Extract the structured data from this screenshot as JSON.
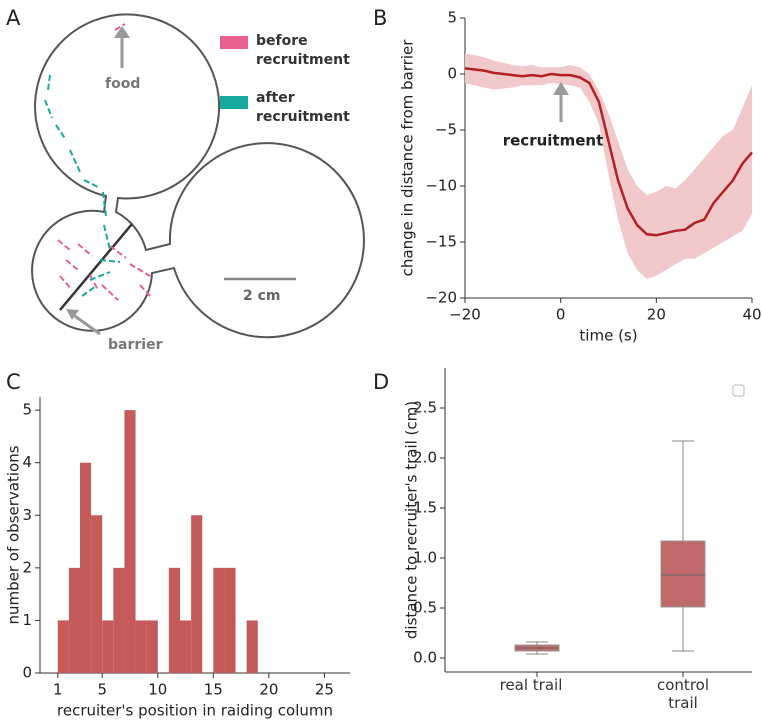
{
  "chart_data": [
    {
      "panel": "A",
      "type": "diagram",
      "series": [
        {
          "name": "before recruitment",
          "color": "#e8608e"
        },
        {
          "name": "after recruitment",
          "color": "#17a89e"
        }
      ],
      "annotations": [
        "food",
        "barrier",
        "2 cm"
      ]
    },
    {
      "panel": "B",
      "type": "line",
      "x": [
        -20,
        -18,
        -16,
        -14,
        -12,
        -10,
        -8,
        -6,
        -4,
        -2,
        0,
        2,
        4,
        6,
        8,
        10,
        12,
        14,
        16,
        18,
        20,
        22,
        24,
        26,
        28,
        30,
        32,
        34,
        36,
        38,
        40
      ],
      "series": [
        {
          "color": "#b22026",
          "values": [
            0.5,
            0.4,
            0.3,
            0.1,
            0,
            -0.1,
            -0.2,
            -0.1,
            -0.2,
            0,
            -0.1,
            -0.1,
            -0.3,
            -0.8,
            -2.5,
            -6,
            -9.5,
            -12,
            -13.5,
            -14.3,
            -14.4,
            -14.2,
            -14,
            -13.9,
            -13.3,
            -13,
            -11.5,
            -10.5,
            -9.5,
            -8,
            -7
          ]
        }
      ],
      "band": {
        "color": "#f2c9cb",
        "upper": [
          1.8,
          1.7,
          1.5,
          1.2,
          1,
          0.8,
          0.7,
          0.8,
          0.6,
          0.6,
          0.6,
          0.8,
          0.6,
          0,
          -1.5,
          -3.5,
          -6,
          -8.5,
          -10,
          -10.8,
          -10.5,
          -10,
          -10.2,
          -9.5,
          -8.5,
          -7.5,
          -6.5,
          -5.5,
          -5,
          -3,
          -1
        ],
        "lower": [
          -0.8,
          -1,
          -1.2,
          -1.4,
          -1.3,
          -1.2,
          -1,
          -1,
          -1,
          -0.8,
          -0.9,
          -1,
          -1.2,
          -2.5,
          -4.5,
          -9,
          -13,
          -16,
          -17.5,
          -18.3,
          -18,
          -17.5,
          -17,
          -16.5,
          -16.5,
          -16,
          -15.5,
          -15,
          -14.5,
          -14,
          -12.5
        ]
      },
      "xlim": [
        -20,
        40
      ],
      "ylim": [
        -20,
        5
      ],
      "xticks": [
        {
          "value": -20,
          "label": "−20"
        },
        0,
        20,
        40
      ],
      "yticks": [
        {
          "value": -20,
          "label": "−20"
        },
        {
          "value": -15,
          "label": "−15"
        },
        {
          "value": -10,
          "label": "−10"
        },
        {
          "value": -5,
          "label": "−5"
        },
        0,
        5
      ],
      "xlabel": "time (s)",
      "ylabel": "change in distance from barrier",
      "annotation": "recruitment"
    },
    {
      "panel": "C",
      "type": "histogram",
      "color": "#c45a5a",
      "bins": [
        1,
        2,
        3,
        4,
        5,
        6,
        7,
        8,
        9,
        10,
        11,
        12,
        13,
        14,
        15,
        16,
        17,
        18,
        19
      ],
      "counts": [
        1,
        2,
        4,
        3,
        1,
        2,
        5,
        1,
        1,
        0,
        2,
        1,
        3,
        0,
        2,
        2,
        0,
        1
      ],
      "xlim": [
        -0.6,
        27.3
      ],
      "ylim": [
        0,
        5.25
      ],
      "xticks": [
        1,
        5,
        10,
        15,
        20,
        25
      ],
      "yticks": [
        0,
        1,
        2,
        3,
        4,
        5
      ],
      "xlabel": "recruiter's position in raiding column",
      "ylabel": "number of observations"
    },
    {
      "panel": "D",
      "type": "box",
      "color": "#c0696b",
      "categories": [
        "real trail",
        "control trail"
      ],
      "boxes": [
        {
          "whislo": 0.04,
          "q1": 0.07,
          "med": 0.1,
          "q3": 0.13,
          "whishi": 0.16
        },
        {
          "whislo": 0.07,
          "q1": 0.51,
          "med": 0.83,
          "q3": 1.17,
          "whishi": 2.17
        }
      ],
      "ylim": [
        -0.14,
        2.9
      ],
      "yticks": [
        {
          "value": 0,
          "label": "0.0"
        },
        0.5,
        {
          "value": 1,
          "label": "1.0"
        },
        1.5,
        {
          "value": 2,
          "label": "2.0"
        },
        2.5
      ],
      "ylabel": "distance to recruiter's trail (cm)"
    }
  ]
}
